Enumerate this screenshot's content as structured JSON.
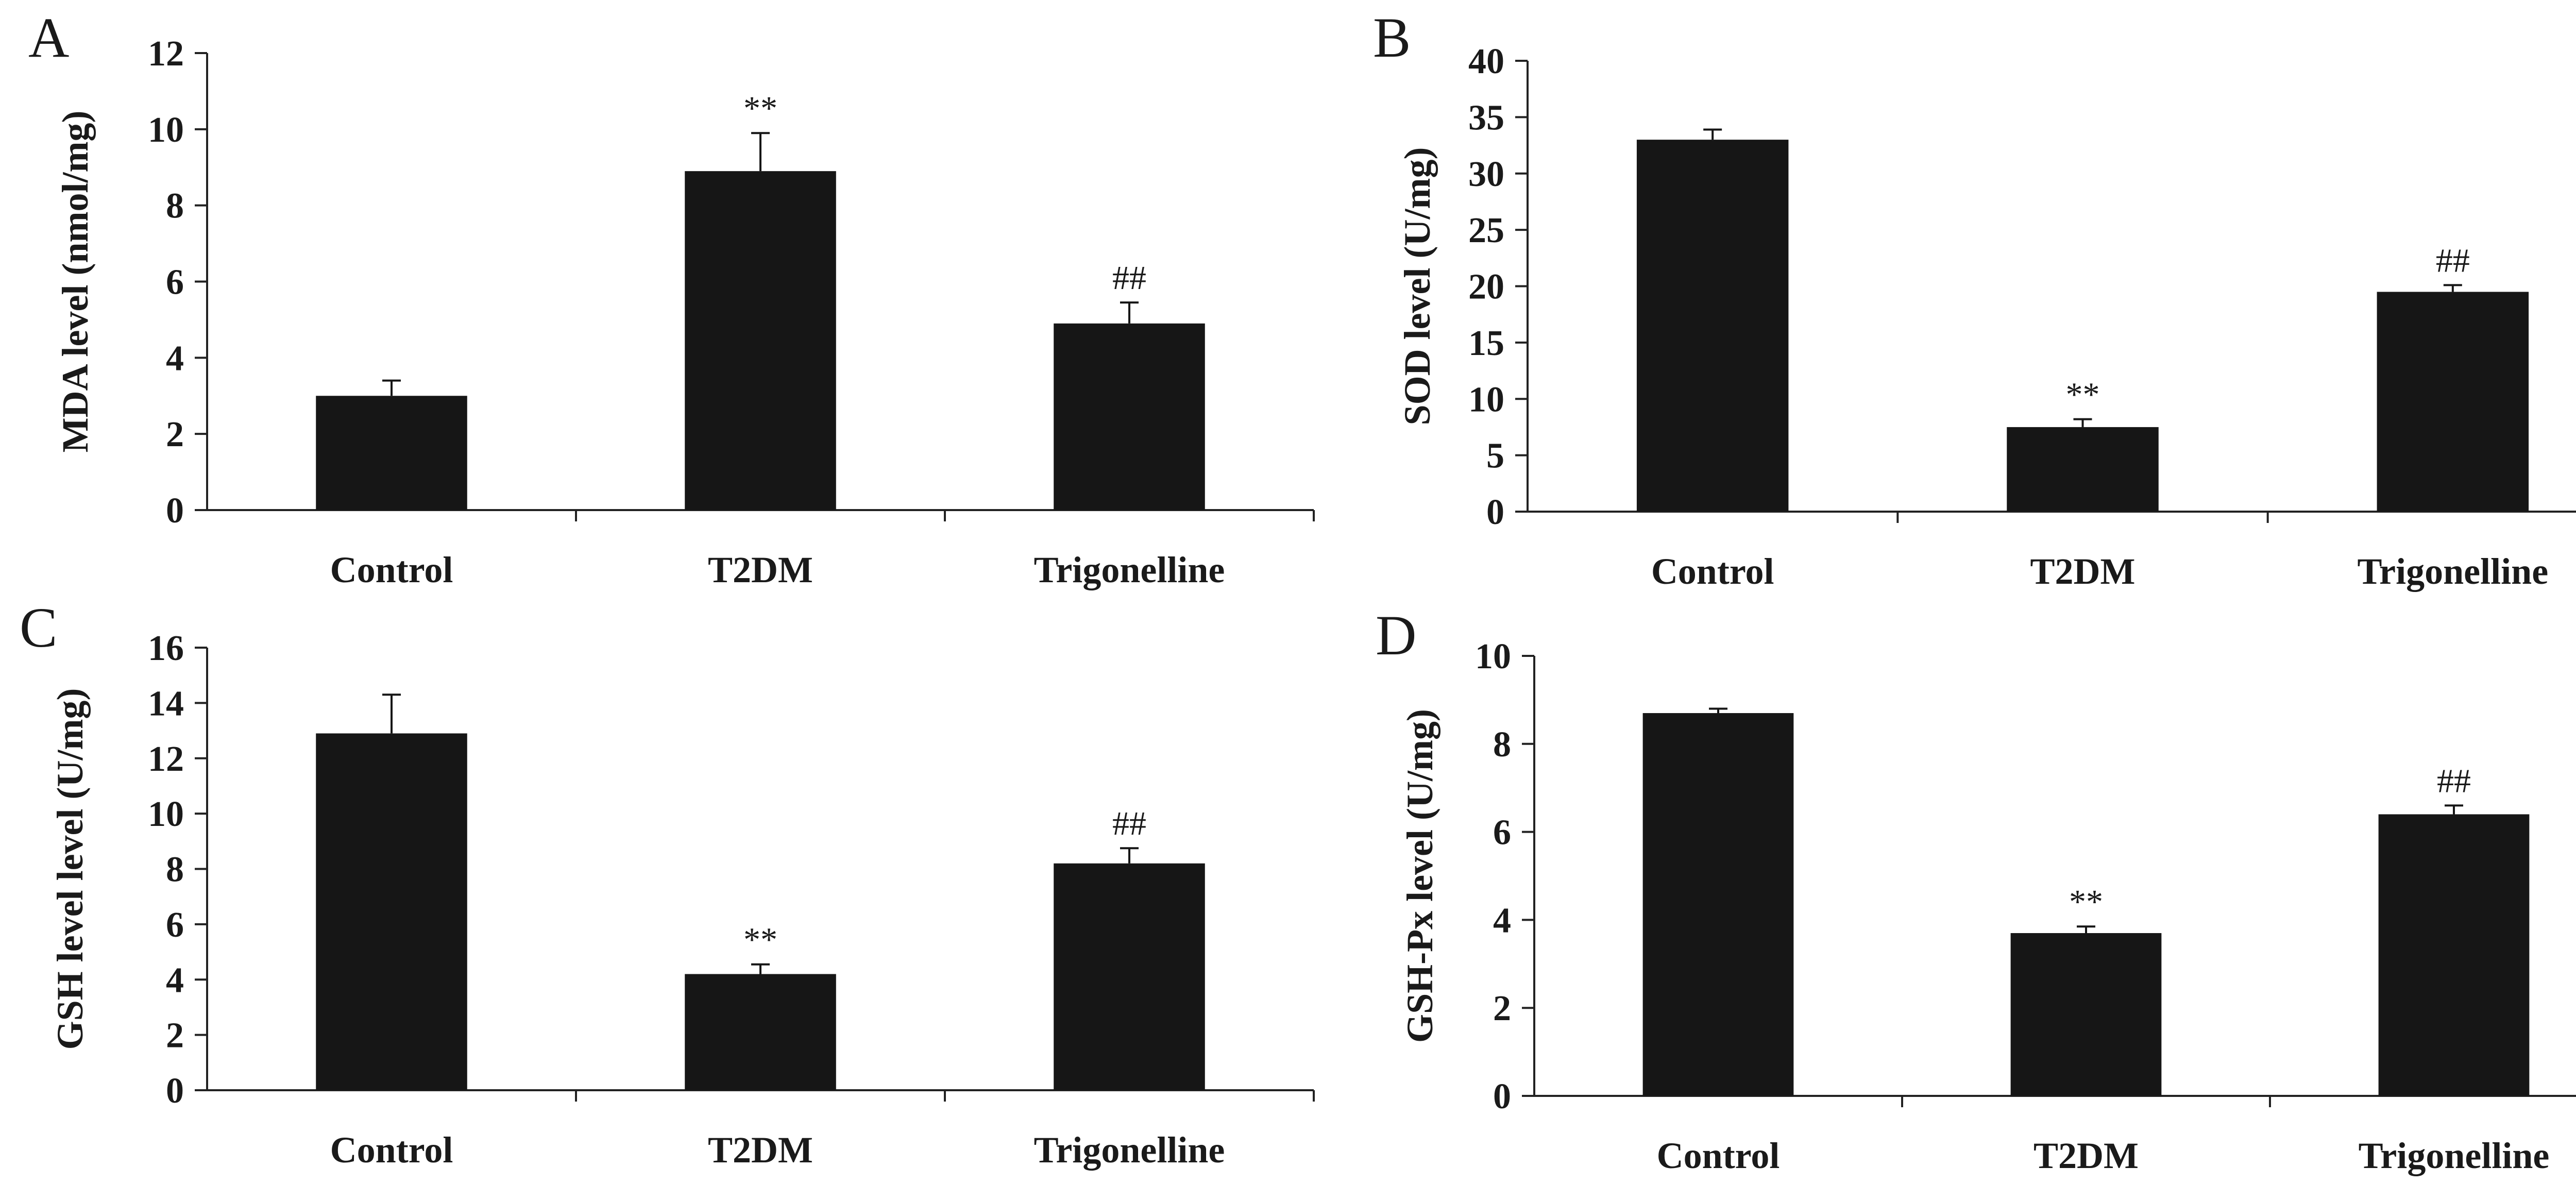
{
  "figure": {
    "description_label": "Oxidative stress markers by group"
  },
  "chart_data": [
    {
      "panel": "A",
      "type": "bar",
      "title": "",
      "xlabel": "",
      "ylabel": "MDA level (nmol/mg)",
      "categories": [
        "Control",
        "T2DM",
        "Trigonelline"
      ],
      "values": [
        3.0,
        8.9,
        4.9
      ],
      "errors": [
        0.4,
        1.0,
        0.55
      ],
      "annotations": [
        "",
        "**",
        "##"
      ],
      "ylim": [
        0,
        12
      ],
      "yticks": [
        0,
        2,
        4,
        6,
        8,
        10,
        12
      ],
      "bar_color": "#161616"
    },
    {
      "panel": "B",
      "type": "bar",
      "title": "",
      "xlabel": "",
      "ylabel": "SOD level (U/mg)",
      "categories": [
        "Control",
        "T2DM",
        "Trigonelline"
      ],
      "values": [
        33.0,
        7.5,
        19.5
      ],
      "errors": [
        0.9,
        0.7,
        0.6
      ],
      "annotations": [
        "",
        "**",
        "##"
      ],
      "ylim": [
        0,
        40
      ],
      "yticks": [
        0,
        5,
        10,
        15,
        20,
        25,
        30,
        35,
        40
      ],
      "bar_color": "#161616"
    },
    {
      "panel": "C",
      "type": "bar",
      "title": "",
      "xlabel": "",
      "ylabel": "GSH level level (U/mg)",
      "categories": [
        "Control",
        "T2DM",
        "Trigonelline"
      ],
      "values": [
        12.9,
        4.2,
        8.2
      ],
      "errors": [
        1.4,
        0.35,
        0.55
      ],
      "annotations": [
        "",
        "**",
        "##"
      ],
      "ylim": [
        0,
        16
      ],
      "yticks": [
        0,
        2,
        4,
        6,
        8,
        10,
        12,
        14,
        16
      ],
      "bar_color": "#161616"
    },
    {
      "panel": "D",
      "type": "bar",
      "title": "",
      "xlabel": "",
      "ylabel": "GSH-Px level (U/mg)",
      "categories": [
        "Control",
        "T2DM",
        "Trigonelline"
      ],
      "values": [
        8.7,
        3.7,
        6.4
      ],
      "errors": [
        0.1,
        0.15,
        0.2
      ],
      "annotations": [
        "",
        "**",
        "##"
      ],
      "ylim": [
        0,
        10
      ],
      "yticks": [
        0,
        2,
        4,
        6,
        8,
        10
      ],
      "bar_color": "#161616"
    }
  ]
}
